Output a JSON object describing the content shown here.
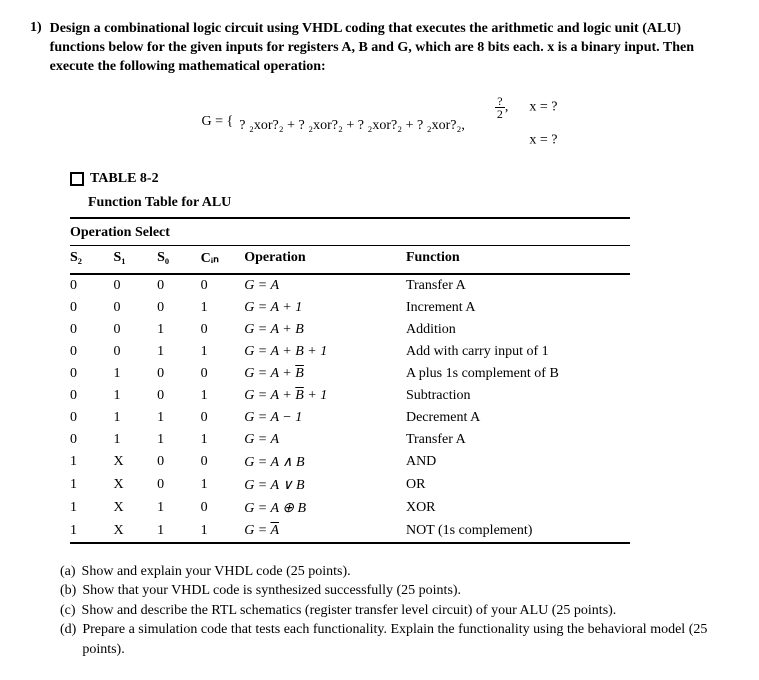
{
  "question": {
    "number": "1)",
    "text": "Design a combinational logic circuit using VHDL coding that executes the arithmetic and logic unit (ALU) functions below for the given inputs for registers A, B and G, which are 8 bits each. x is a binary input. Then execute the following mathematical operation:"
  },
  "equation": {
    "lhs": "G = {",
    "line1_blank": "",
    "line2": "? ₂xor?₂ + ? ₂xor?₂ + ? ₂xor?₂ + ? ₂xor?₂,",
    "frac_num": "?",
    "frac_den": "2",
    "cond1_suffix": ",",
    "cond1_right": "x = ?",
    "cond2_right": "x = ?"
  },
  "table": {
    "label": "TABLE 8-2",
    "title": "Function Table for ALU",
    "group_header": "Operation Select",
    "headers": {
      "s2": "S₂",
      "s1": "S₁",
      "s0": "S₀",
      "cin": "Cᵢₙ",
      "operation": "Operation",
      "function": "Function"
    },
    "rows": [
      {
        "s2": "0",
        "s1": "0",
        "s0": "0",
        "cin": "0",
        "op_html": "G = A",
        "fn": "Transfer A"
      },
      {
        "s2": "0",
        "s1": "0",
        "s0": "0",
        "cin": "1",
        "op_html": "G = A + 1",
        "fn": "Increment A"
      },
      {
        "s2": "0",
        "s1": "0",
        "s0": "1",
        "cin": "0",
        "op_html": "G = A + B",
        "fn": "Addition"
      },
      {
        "s2": "0",
        "s1": "0",
        "s0": "1",
        "cin": "1",
        "op_html": "G = A + B + 1",
        "fn": "Add with carry input of 1"
      },
      {
        "s2": "0",
        "s1": "1",
        "s0": "0",
        "cin": "0",
        "op_html": "G = A + <span class=\"overline\">B</span>",
        "fn": "A plus 1s complement of B"
      },
      {
        "s2": "0",
        "s1": "1",
        "s0": "0",
        "cin": "1",
        "op_html": "G = A + <span class=\"overline\">B</span> + 1",
        "fn": "Subtraction"
      },
      {
        "s2": "0",
        "s1": "1",
        "s0": "1",
        "cin": "0",
        "op_html": "G = A − 1",
        "fn": "Decrement A"
      },
      {
        "s2": "0",
        "s1": "1",
        "s0": "1",
        "cin": "1",
        "op_html": "G = A",
        "fn": "Transfer A"
      },
      {
        "s2": "1",
        "s1": "X",
        "s0": "0",
        "cin": "0",
        "op_html": "G = A ∧ B",
        "fn": "AND"
      },
      {
        "s2": "1",
        "s1": "X",
        "s0": "0",
        "cin": "1",
        "op_html": "G = A ∨ B",
        "fn": "OR"
      },
      {
        "s2": "1",
        "s1": "X",
        "s0": "1",
        "cin": "0",
        "op_html": "G = A ⊕ B",
        "fn": "XOR"
      },
      {
        "s2": "1",
        "s1": "X",
        "s0": "1",
        "cin": "1",
        "op_html": "G = <span class=\"overline\">A</span>",
        "fn": "NOT (1s complement)"
      }
    ]
  },
  "parts": {
    "a": {
      "label": "(a)",
      "text": "Show and explain your VHDL code (25 points)."
    },
    "b": {
      "label": "(b)",
      "text": "Show that your VHDL code is synthesized successfully (25 points)."
    },
    "c": {
      "label": "(c)",
      "text": "Show and describe the RTL schematics (register transfer level circuit) of your ALU (25 points)."
    },
    "d": {
      "label": "(d)",
      "text": "Prepare a simulation code that tests each functionality. Explain the functionality using the behavioral model (25 points)."
    }
  }
}
